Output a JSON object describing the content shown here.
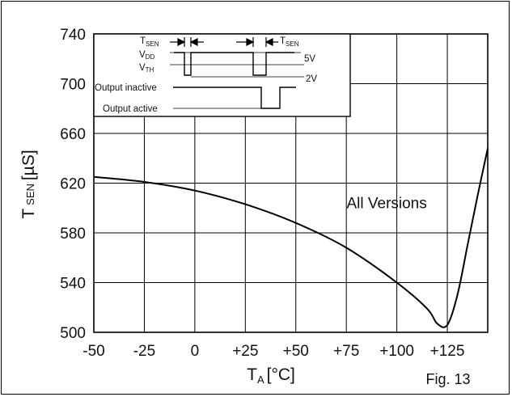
{
  "chart_data": {
    "type": "line",
    "title": "",
    "xlabel": "T",
    "xlabel_sub": "A",
    "xlabel_unit": "[°C]",
    "ylabel": "T",
    "ylabel_sub": "SEN",
    "ylabel_unit": "[µS]",
    "xlim": [
      -50,
      145
    ],
    "ylim": [
      500,
      740
    ],
    "x_ticks": [
      -50,
      -25,
      0,
      25,
      50,
      75,
      100,
      125
    ],
    "x_tick_labels": [
      "-50",
      "-25",
      "0",
      "+25",
      "+50",
      "+75",
      "+100",
      "+125"
    ],
    "y_ticks": [
      500,
      540,
      580,
      620,
      660,
      700,
      740
    ],
    "y_tick_labels": [
      "500",
      "540",
      "580",
      "620",
      "660",
      "700",
      "740"
    ],
    "grid": true,
    "series": [
      {
        "x": [
          -50,
          -25,
          0,
          25,
          50,
          75,
          100,
          115,
          120,
          125,
          130,
          135,
          140,
          145
        ],
        "y": [
          625,
          621,
          614,
          603,
          588,
          568,
          540,
          519,
          507,
          506,
          530,
          570,
          610,
          648
        ]
      }
    ],
    "annotations": [
      {
        "text": "All Versions",
        "x": 95,
        "y": 600
      }
    ],
    "figure_label": "Fig. 13"
  },
  "inset": {
    "labels": {
      "tsen_left": "T",
      "tsen_left_sub": "SEN",
      "tsen_right": "T",
      "tsen_right_sub": "SEN",
      "vdd": "V",
      "vdd_sub": "DD",
      "vth": "V",
      "vth_sub": "TH",
      "v5": "5V",
      "v2": "2V",
      "output_inactive": "Output inactive",
      "output_active": "Output active"
    }
  }
}
